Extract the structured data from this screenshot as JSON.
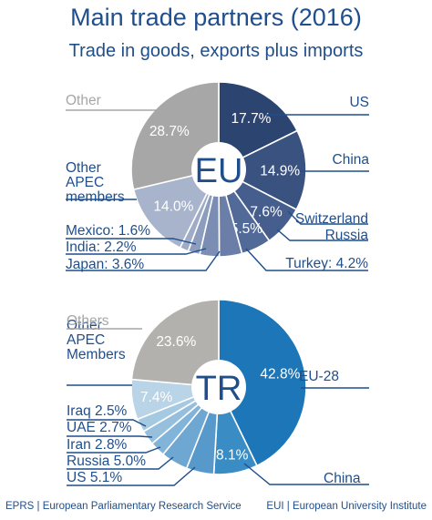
{
  "title": "Main trade partners (2016)",
  "subtitle": "Trade in goods, exports plus imports",
  "footer": {
    "left": "EPRS | European Parliamentary Research Service",
    "right": "EUI | European University Institute"
  },
  "chart_data": [
    {
      "type": "pie",
      "center_label": "EU",
      "start_angle_deg": 0,
      "direction": "clockwise",
      "slices": [
        {
          "label": "US",
          "value": 17.7,
          "value_label": "17.7%",
          "color": "#2c4470"
        },
        {
          "label": "China",
          "value": 14.9,
          "value_label": "14.9%",
          "color": "#3a5280"
        },
        {
          "label": "Switzerland",
          "value": 7.6,
          "value_label": "7.6%",
          "color": "#455e8e"
        },
        {
          "label": "Russia",
          "value": 5.5,
          "value_label": "5.5%",
          "color": "#526a98"
        },
        {
          "label": "Turkey: 4.2%",
          "value": 4.2,
          "value_label": "",
          "color": "#6a7ea7"
        },
        {
          "label": "Japan: 3.6%",
          "value": 3.6,
          "value_label": "",
          "color": "#7b8db3"
        },
        {
          "label": "India: 2.2%",
          "value": 2.2,
          "value_label": "",
          "color": "#8d9dbd"
        },
        {
          "label": "Mexico: 1.6%",
          "value": 1.6,
          "value_label": "",
          "color": "#9eacc8"
        },
        {
          "label": "Other APEC members",
          "value": 14.0,
          "value_label": "14.0%",
          "color": "#a8b3cc"
        },
        {
          "label": "Other",
          "value": 28.7,
          "value_label": "28.7%",
          "color": "#a7a7a7"
        }
      ]
    },
    {
      "type": "pie",
      "center_label": "TR",
      "start_angle_deg": 0,
      "direction": "clockwise",
      "slices": [
        {
          "label": "EU-28",
          "value": 42.8,
          "value_label": "42.8%",
          "color": "#1c76b7"
        },
        {
          "label": "China",
          "value": 8.1,
          "value_label": "8.1%",
          "color": "#3a8dc4"
        },
        {
          "label": "US 5.1%",
          "value": 5.1,
          "value_label": "",
          "color": "#5899cb"
        },
        {
          "label": "Russia 5.0%",
          "value": 5.0,
          "value_label": "",
          "color": "#6ea7d2"
        },
        {
          "label": "Iran 2.8%",
          "value": 2.8,
          "value_label": "",
          "color": "#82b3d8"
        },
        {
          "label": "UAE 2.7%",
          "value": 2.7,
          "value_label": "",
          "color": "#95bfdd"
        },
        {
          "label": "Iraq 2.5%",
          "value": 2.5,
          "value_label": "",
          "color": "#a6c9e2"
        },
        {
          "label": "Other APEC Members",
          "value": 7.4,
          "value_label": "7.4%",
          "color": "#b9d3e7"
        },
        {
          "label": "Others",
          "value": 23.6,
          "value_label": "23.6%",
          "color": "#b3b1ae"
        }
      ]
    }
  ]
}
